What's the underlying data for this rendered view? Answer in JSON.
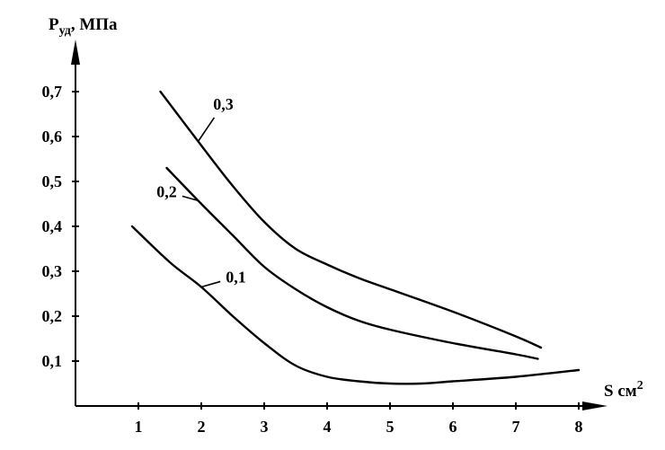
{
  "chart_data": {
    "type": "line",
    "title": "",
    "ylabel_main": "P",
    "ylabel_sub": "уд",
    "ylabel_unit": ", МПа",
    "xlabel_main": "S см",
    "xlabel_sup": "2",
    "xlim": [
      0,
      8.8
    ],
    "ylim": [
      0,
      0.95
    ],
    "x_ticks": [
      {
        "value": 1,
        "label": "1"
      },
      {
        "value": 2,
        "label": "2"
      },
      {
        "value": 3,
        "label": "3"
      },
      {
        "value": 4,
        "label": "4"
      },
      {
        "value": 5,
        "label": "5"
      },
      {
        "value": 6,
        "label": "6"
      },
      {
        "value": 7,
        "label": "7"
      },
      {
        "value": 8,
        "label": "8"
      }
    ],
    "y_ticks": [
      {
        "value": 0.1,
        "label": "0,1"
      },
      {
        "value": 0.2,
        "label": "0,2"
      },
      {
        "value": 0.3,
        "label": "0,3"
      },
      {
        "value": 0.4,
        "label": "0,4"
      },
      {
        "value": 0.5,
        "label": "0,5"
      },
      {
        "value": 0.6,
        "label": "0,6"
      },
      {
        "value": 0.7,
        "label": "0,7"
      }
    ],
    "grid": false,
    "legend": "none",
    "series": [
      {
        "name": "0,1",
        "x": [
          0.9,
          1.5,
          2.0,
          2.5,
          3.0,
          3.5,
          4.0,
          4.5,
          5.0,
          5.5,
          6.0,
          7.0,
          8.0
        ],
        "y": [
          0.4,
          0.32,
          0.265,
          0.2,
          0.14,
          0.09,
          0.065,
          0.055,
          0.05,
          0.05,
          0.055,
          0.065,
          0.08
        ]
      },
      {
        "name": "0,2",
        "x": [
          1.45,
          2.0,
          2.5,
          3.0,
          3.5,
          4.0,
          4.5,
          5.0,
          6.0,
          7.0,
          7.35
        ],
        "y": [
          0.53,
          0.45,
          0.38,
          0.31,
          0.26,
          0.22,
          0.19,
          0.17,
          0.14,
          0.115,
          0.105
        ]
      },
      {
        "name": "0,3",
        "x": [
          1.35,
          2.0,
          2.5,
          3.0,
          3.5,
          4.0,
          4.5,
          5.0,
          6.0,
          7.0,
          7.4
        ],
        "y": [
          0.7,
          0.58,
          0.49,
          0.41,
          0.35,
          0.315,
          0.285,
          0.26,
          0.21,
          0.155,
          0.13
        ]
      }
    ],
    "annotations": [
      {
        "text": "0,1",
        "series": 0,
        "at_x": 2.0,
        "label_x": 2.55,
        "label_y": 0.275
      },
      {
        "text": "0,2",
        "series": 1,
        "at_x": 1.95,
        "label_x": 1.45,
        "label_y": 0.465
      },
      {
        "text": "0,3",
        "series": 2,
        "at_x": 1.95,
        "label_x": 2.35,
        "label_y": 0.66
      }
    ]
  }
}
